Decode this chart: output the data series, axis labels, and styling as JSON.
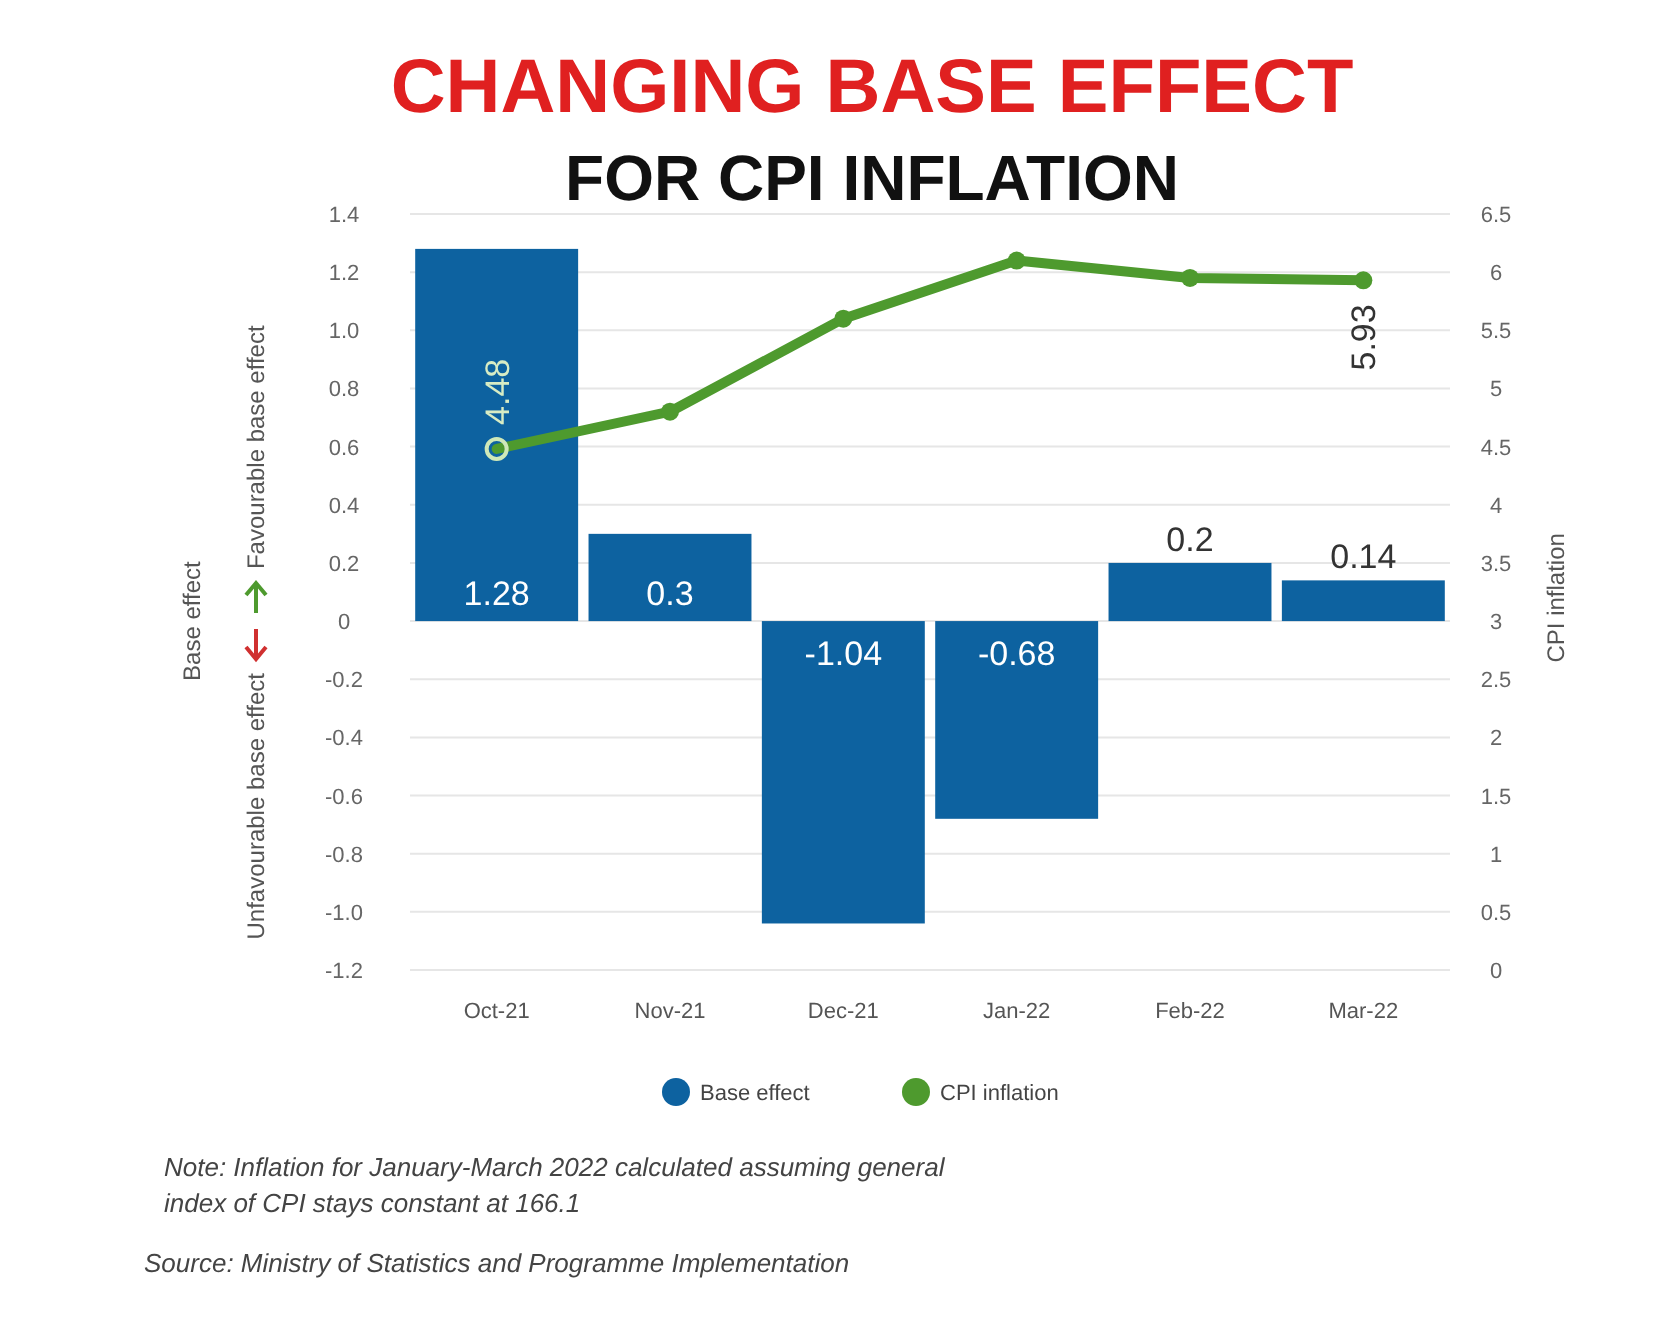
{
  "chart_data": {
    "type": "bar",
    "title": "CHANGING BASE EFFECT",
    "subtitle": "FOR CPI INFLATION",
    "ylabel": "Base effect",
    "y2label": "CPI inflation",
    "categories": [
      "Oct-21",
      "Nov-21",
      "Dec-21",
      "Jan-22",
      "Feb-22",
      "Mar-22"
    ],
    "series": [
      {
        "name": "Base effect",
        "color": "#0d62a0",
        "values": [
          1.28,
          0.3,
          -1.04,
          -0.68,
          0.2,
          0.14
        ]
      },
      {
        "name": "CPI inflation",
        "type": "line",
        "axis": "y2",
        "color": "#4e9a2e",
        "marker": "circle",
        "values": [
          4.48,
          4.8,
          5.6,
          6.1,
          5.95,
          5.93
        ],
        "value_labels": [
          "4.48",
          null,
          null,
          null,
          null,
          "5.93"
        ]
      }
    ],
    "data_labels": true,
    "ylim": [
      -1.2,
      1.4
    ],
    "yticks": [
      1.4,
      1.2,
      {
        "value": 1,
        "label": "1.0"
      },
      0.8,
      0.6,
      0.4,
      0.2,
      0,
      -0.2,
      -0.4,
      -0.6,
      -0.8,
      {
        "value": -1,
        "label": "-1.0"
      },
      -1.2
    ],
    "y2lim": [
      0,
      6.5
    ],
    "y2ticks": [
      0,
      0.5,
      1,
      1.5,
      2,
      2.5,
      3,
      3.5,
      4,
      4.5,
      5,
      5.5,
      6,
      6.5
    ],
    "grid": "y",
    "legend": "bottom",
    "annotations": [
      "Favourable base effect",
      "Unfavourable base effect",
      "Note: Inflation for  January-March 2022 calculated assuming general index of CPI stays constant at 166.1",
      "Source: Ministry of Statistics and Programme Implementation"
    ]
  }
}
